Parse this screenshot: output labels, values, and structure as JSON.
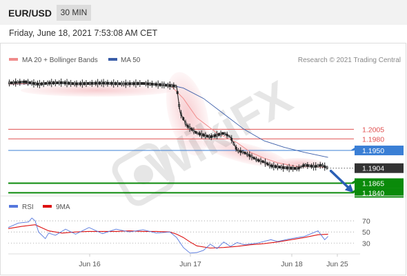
{
  "header": {
    "pair": "EUR/USD",
    "timeframe": "30 MIN",
    "timestamp": "Friday, June 18, 2021 7:53:08 AM CET"
  },
  "credit": "Research © 2021 Trading Central",
  "watermark": "WikiFX",
  "colors": {
    "ma20": "#f08c8c",
    "ma50": "#3a5da8",
    "rsi": "#5577dd",
    "rsi_ma": "#dd1111",
    "resistance": "#e05050",
    "pivot": "#3a7fd5",
    "support": "#0a8a0a",
    "current": "#333333"
  },
  "chart_data": [
    {
      "type": "candlestick",
      "legend": [
        {
          "name": "MA 20 + Bollinger Bands",
          "color": "#f08c8c"
        },
        {
          "name": "MA 50",
          "color": "#3a5da8"
        }
      ],
      "x_ticks": [
        "Jun 16",
        "Jun 17",
        "Jun 18",
        "Jun 25"
      ],
      "ylim": [
        1.183,
        1.214
      ],
      "levels": [
        {
          "label": "1.2005",
          "value": 1.2005,
          "kind": "resistance",
          "color": "#e05050"
        },
        {
          "label": "1.1980",
          "value": 1.198,
          "kind": "resistance",
          "color": "#e05050"
        },
        {
          "label": "1.1950",
          "value": 1.195,
          "kind": "pivot",
          "color": "#3a7fd5"
        },
        {
          "label": "1.1904",
          "value": 1.1904,
          "kind": "current",
          "color": "#333333"
        },
        {
          "label": "1.1865",
          "value": 1.1865,
          "kind": "support",
          "color": "#0a8a0a"
        },
        {
          "label": "1.1840",
          "value": 1.184,
          "kind": "support",
          "color": "#0a8a0a"
        }
      ],
      "price_path": {
        "x": [
          0,
          5,
          9,
          12,
          16,
          20,
          24,
          28,
          34,
          40,
          46,
          50,
          51,
          53,
          56,
          60,
          64,
          66,
          68,
          70,
          72,
          74,
          76,
          78,
          82,
          86,
          88,
          91,
          93,
          95
        ],
        "y": [
          1.2125,
          1.2128,
          1.2122,
          1.2125,
          1.2126,
          1.2123,
          1.2124,
          1.2125,
          1.2123,
          1.2124,
          1.212,
          1.2117,
          1.205,
          1.2015,
          1.1995,
          1.1985,
          1.1995,
          1.1985,
          1.195,
          1.1945,
          1.1935,
          1.1925,
          1.192,
          1.191,
          1.1905,
          1.1903,
          1.1912,
          1.1908,
          1.1912,
          1.1904
        ]
      },
      "ma20": {
        "x": [
          0,
          10,
          20,
          30,
          40,
          48,
          52,
          56,
          62,
          68,
          72,
          76,
          80,
          86,
          90,
          95
        ],
        "y": [
          1.2122,
          1.2124,
          1.2124,
          1.2124,
          1.2123,
          1.2121,
          1.2085,
          1.2035,
          1.1995,
          1.197,
          1.1945,
          1.193,
          1.1918,
          1.1908,
          1.1908,
          1.1906
        ]
      },
      "ma50": {
        "x": [
          0,
          10,
          20,
          30,
          40,
          47,
          52,
          58,
          64,
          70,
          76,
          82,
          88,
          95
        ],
        "y": [
          1.2122,
          1.2123,
          1.2124,
          1.2124,
          1.2124,
          1.2122,
          1.2112,
          1.2085,
          1.2045,
          1.2005,
          1.1975,
          1.1958,
          1.1945,
          1.1932
        ]
      },
      "forecast_arrow": {
        "from": [
          95,
          1.1904
        ],
        "to": [
          102,
          1.1845
        ]
      }
    },
    {
      "type": "line",
      "legend": [
        {
          "name": "RSI",
          "color": "#5577dd"
        },
        {
          "name": "9MA",
          "color": "#dd1111"
        }
      ],
      "y_ticks": [
        70,
        50,
        30
      ],
      "ylim": [
        8,
        80
      ],
      "series": [
        {
          "name": "RSI",
          "x": [
            0,
            3,
            6,
            7,
            8,
            9,
            11,
            12,
            14,
            17,
            20,
            24,
            28,
            32,
            36,
            40,
            44,
            48,
            50,
            52,
            54,
            56,
            58,
            60,
            62,
            64,
            66,
            68,
            70,
            74,
            78,
            80,
            84,
            88,
            92,
            94,
            95
          ],
          "y": [
            58,
            66,
            68,
            75,
            70,
            50,
            38,
            48,
            44,
            55,
            46,
            58,
            47,
            55,
            50,
            54,
            48,
            50,
            40,
            22,
            12,
            13,
            17,
            28,
            20,
            32,
            24,
            31,
            27,
            30,
            36,
            33,
            38,
            42,
            52,
            36,
            42
          ]
        },
        {
          "name": "9MA",
          "x": [
            0,
            4,
            8,
            12,
            16,
            20,
            24,
            28,
            32,
            36,
            40,
            44,
            48,
            50,
            52,
            54,
            56,
            60,
            64,
            68,
            72,
            76,
            80,
            84,
            88,
            92,
            95
          ],
          "y": [
            56,
            60,
            63,
            52,
            48,
            50,
            51,
            51,
            51,
            52,
            51,
            51,
            50,
            46,
            40,
            32,
            25,
            21,
            22,
            24,
            27,
            29,
            32,
            36,
            40,
            45,
            46
          ]
        }
      ]
    }
  ]
}
